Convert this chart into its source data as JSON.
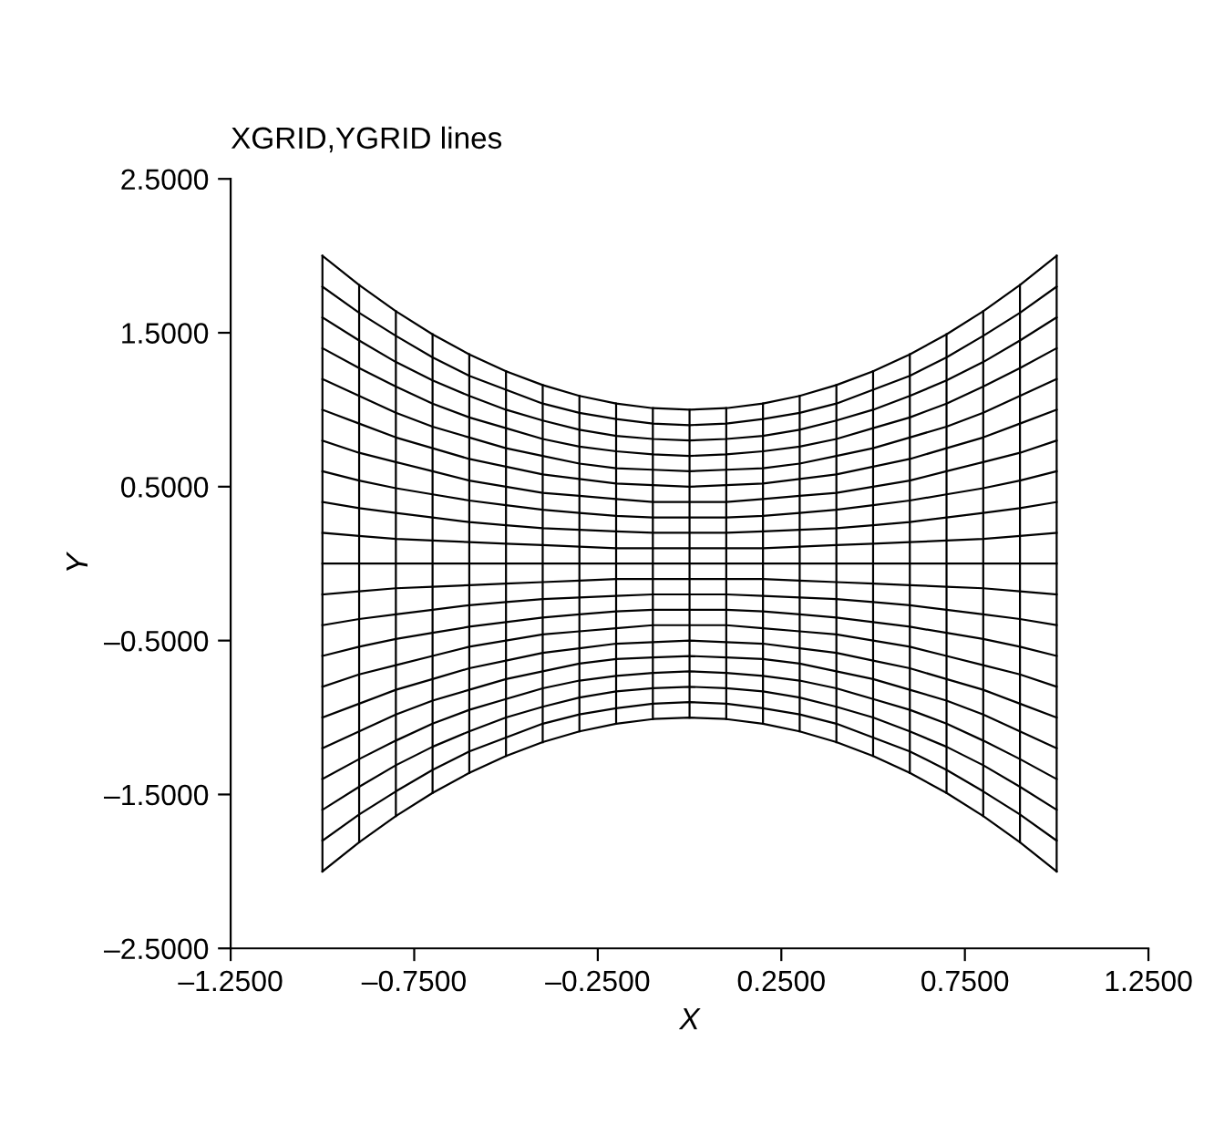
{
  "chart_data": {
    "type": "line",
    "title": "XGRID,YGRID lines",
    "xlabel": "X",
    "ylabel": "Y",
    "xlim": [
      -1.25,
      1.25
    ],
    "ylim": [
      -2.5,
      2.5
    ],
    "xticks": [
      {
        "value": -1.25,
        "label": "–1.2500"
      },
      {
        "value": -0.75,
        "label": "–0.7500"
      },
      {
        "value": -0.25,
        "label": "–0.2500"
      },
      {
        "value": 0.25,
        "label": "0.2500"
      },
      {
        "value": 0.75,
        "label": "0.7500"
      },
      {
        "value": 1.25,
        "label": "1.2500"
      }
    ],
    "yticks": [
      {
        "value": -2.5,
        "label": "–2.5000"
      },
      {
        "value": -1.5,
        "label": "–1.5000"
      },
      {
        "value": -0.5,
        "label": "–0.5000"
      },
      {
        "value": 0.5,
        "label": "0.5000"
      },
      {
        "value": 1.5,
        "label": "1.5000"
      },
      {
        "value": 2.5,
        "label": "2.5000"
      }
    ],
    "grid": false,
    "series": [
      {
        "color": "#000000",
        "x": [
          -1,
          -0.9,
          -0.8,
          -0.7,
          -0.6,
          -0.5,
          -0.4,
          -0.3,
          -0.2,
          -0.1,
          0,
          0.1,
          0.2,
          0.3,
          0.4,
          0.5,
          0.6,
          0.7,
          0.8,
          0.9,
          1
        ],
        "values": [
          2,
          1.81,
          1.64,
          1.49,
          1.36,
          1.25,
          1.16,
          1.09,
          1.04,
          1.01,
          1,
          1.01,
          1.04,
          1.09,
          1.16,
          1.25,
          1.36,
          1.49,
          1.64,
          1.81,
          2
        ]
      },
      {
        "color": "#000000",
        "x": [
          -1,
          -0.9,
          -0.8,
          -0.7,
          -0.6,
          -0.5,
          -0.4,
          -0.3,
          -0.2,
          -0.1,
          0,
          0.1,
          0.2,
          0.3,
          0.4,
          0.5,
          0.6,
          0.7,
          0.8,
          0.9,
          1
        ],
        "values": [
          1.8,
          1.63,
          1.48,
          1.34,
          1.22,
          1.13,
          1.04,
          0.98,
          0.94,
          0.91,
          0.9,
          0.91,
          0.94,
          0.98,
          1.04,
          1.13,
          1.22,
          1.34,
          1.48,
          1.63,
          1.8
        ]
      },
      {
        "color": "#000000",
        "x": [
          -1,
          -0.9,
          -0.8,
          -0.7,
          -0.6,
          -0.5,
          -0.4,
          -0.3,
          -0.2,
          -0.1,
          0,
          0.1,
          0.2,
          0.3,
          0.4,
          0.5,
          0.6,
          0.7,
          0.8,
          0.9,
          1
        ],
        "values": [
          1.6,
          1.45,
          1.31,
          1.19,
          1.09,
          1,
          0.93,
          0.87,
          0.83,
          0.81,
          0.8,
          0.81,
          0.83,
          0.87,
          0.93,
          1,
          1.09,
          1.19,
          1.31,
          1.45,
          1.6
        ]
      },
      {
        "color": "#000000",
        "x": [
          -1,
          -0.9,
          -0.8,
          -0.7,
          -0.6,
          -0.5,
          -0.4,
          -0.3,
          -0.2,
          -0.1,
          0,
          0.1,
          0.2,
          0.3,
          0.4,
          0.5,
          0.6,
          0.7,
          0.8,
          0.9,
          1
        ],
        "values": [
          1.4,
          1.27,
          1.15,
          1.04,
          0.95,
          0.88,
          0.81,
          0.76,
          0.73,
          0.71,
          0.7,
          0.71,
          0.73,
          0.76,
          0.81,
          0.88,
          0.95,
          1.04,
          1.15,
          1.27,
          1.4
        ]
      },
      {
        "color": "#000000",
        "x": [
          -1,
          -0.9,
          -0.8,
          -0.7,
          -0.6,
          -0.5,
          -0.4,
          -0.3,
          -0.2,
          -0.1,
          0,
          0.1,
          0.2,
          0.3,
          0.4,
          0.5,
          0.6,
          0.7,
          0.8,
          0.9,
          1
        ],
        "values": [
          1.2,
          1.09,
          0.98,
          0.89,
          0.82,
          0.75,
          0.7,
          0.65,
          0.62,
          0.61,
          0.6,
          0.61,
          0.62,
          0.65,
          0.7,
          0.75,
          0.82,
          0.89,
          0.98,
          1.09,
          1.2
        ]
      },
      {
        "color": "#000000",
        "x": [
          -1,
          -0.9,
          -0.8,
          -0.7,
          -0.6,
          -0.5,
          -0.4,
          -0.3,
          -0.2,
          -0.1,
          0,
          0.1,
          0.2,
          0.3,
          0.4,
          0.5,
          0.6,
          0.7,
          0.8,
          0.9,
          1
        ],
        "values": [
          1,
          0.91,
          0.82,
          0.75,
          0.68,
          0.63,
          0.58,
          0.55,
          0.52,
          0.51,
          0.5,
          0.51,
          0.52,
          0.55,
          0.58,
          0.63,
          0.68,
          0.75,
          0.82,
          0.91,
          1
        ]
      },
      {
        "color": "#000000",
        "x": [
          -1,
          -0.9,
          -0.8,
          -0.7,
          -0.6,
          -0.5,
          -0.4,
          -0.3,
          -0.2,
          -0.1,
          0,
          0.1,
          0.2,
          0.3,
          0.4,
          0.5,
          0.6,
          0.7,
          0.8,
          0.9,
          1
        ],
        "values": [
          0.8,
          0.72,
          0.66,
          0.6,
          0.54,
          0.5,
          0.46,
          0.44,
          0.42,
          0.4,
          0.4,
          0.4,
          0.42,
          0.44,
          0.46,
          0.5,
          0.54,
          0.6,
          0.66,
          0.72,
          0.8
        ]
      },
      {
        "color": "#000000",
        "x": [
          -1,
          -0.9,
          -0.8,
          -0.7,
          -0.6,
          -0.5,
          -0.4,
          -0.3,
          -0.2,
          -0.1,
          0,
          0.1,
          0.2,
          0.3,
          0.4,
          0.5,
          0.6,
          0.7,
          0.8,
          0.9,
          1
        ],
        "values": [
          0.6,
          0.54,
          0.49,
          0.45,
          0.41,
          0.38,
          0.35,
          0.33,
          0.31,
          0.3,
          0.3,
          0.3,
          0.31,
          0.33,
          0.35,
          0.38,
          0.41,
          0.45,
          0.49,
          0.54,
          0.6
        ]
      },
      {
        "color": "#000000",
        "x": [
          -1,
          -0.9,
          -0.8,
          -0.7,
          -0.6,
          -0.5,
          -0.4,
          -0.3,
          -0.2,
          -0.1,
          0,
          0.1,
          0.2,
          0.3,
          0.4,
          0.5,
          0.6,
          0.7,
          0.8,
          0.9,
          1
        ],
        "values": [
          0.4,
          0.36,
          0.33,
          0.3,
          0.27,
          0.25,
          0.23,
          0.22,
          0.21,
          0.2,
          0.2,
          0.2,
          0.21,
          0.22,
          0.23,
          0.25,
          0.27,
          0.3,
          0.33,
          0.36,
          0.4
        ]
      },
      {
        "color": "#000000",
        "x": [
          -1,
          -0.9,
          -0.8,
          -0.7,
          -0.6,
          -0.5,
          -0.4,
          -0.3,
          -0.2,
          -0.1,
          0,
          0.1,
          0.2,
          0.3,
          0.4,
          0.5,
          0.6,
          0.7,
          0.8,
          0.9,
          1
        ],
        "values": [
          0.2,
          0.18,
          0.16,
          0.15,
          0.14,
          0.13,
          0.12,
          0.11,
          0.1,
          0.1,
          0.1,
          0.1,
          0.1,
          0.11,
          0.12,
          0.13,
          0.14,
          0.15,
          0.16,
          0.18,
          0.2
        ]
      },
      {
        "color": "#000000",
        "x": [
          -1,
          -0.9,
          -0.8,
          -0.7,
          -0.6,
          -0.5,
          -0.4,
          -0.3,
          -0.2,
          -0.1,
          0,
          0.1,
          0.2,
          0.3,
          0.4,
          0.5,
          0.6,
          0.7,
          0.8,
          0.9,
          1
        ],
        "values": [
          0,
          0,
          0,
          0,
          0,
          0,
          0,
          0,
          0,
          0,
          0,
          0,
          0,
          0,
          0,
          0,
          0,
          0,
          0,
          0,
          0
        ]
      },
      {
        "color": "#000000",
        "x": [
          -1,
          -0.9,
          -0.8,
          -0.7,
          -0.6,
          -0.5,
          -0.4,
          -0.3,
          -0.2,
          -0.1,
          0,
          0.1,
          0.2,
          0.3,
          0.4,
          0.5,
          0.6,
          0.7,
          0.8,
          0.9,
          1
        ],
        "values": [
          -0.2,
          -0.18,
          -0.16,
          -0.15,
          -0.14,
          -0.13,
          -0.12,
          -0.11,
          -0.1,
          -0.1,
          -0.1,
          -0.1,
          -0.1,
          -0.11,
          -0.12,
          -0.13,
          -0.14,
          -0.15,
          -0.16,
          -0.18,
          -0.2
        ]
      },
      {
        "color": "#000000",
        "x": [
          -1,
          -0.9,
          -0.8,
          -0.7,
          -0.6,
          -0.5,
          -0.4,
          -0.3,
          -0.2,
          -0.1,
          0,
          0.1,
          0.2,
          0.3,
          0.4,
          0.5,
          0.6,
          0.7,
          0.8,
          0.9,
          1
        ],
        "values": [
          -0.4,
          -0.36,
          -0.33,
          -0.3,
          -0.27,
          -0.25,
          -0.23,
          -0.22,
          -0.21,
          -0.2,
          -0.2,
          -0.2,
          -0.21,
          -0.22,
          -0.23,
          -0.25,
          -0.27,
          -0.3,
          -0.33,
          -0.36,
          -0.4
        ]
      },
      {
        "color": "#000000",
        "x": [
          -1,
          -0.9,
          -0.8,
          -0.7,
          -0.6,
          -0.5,
          -0.4,
          -0.3,
          -0.2,
          -0.1,
          0,
          0.1,
          0.2,
          0.3,
          0.4,
          0.5,
          0.6,
          0.7,
          0.8,
          0.9,
          1
        ],
        "values": [
          -0.6,
          -0.54,
          -0.49,
          -0.45,
          -0.41,
          -0.38,
          -0.35,
          -0.33,
          -0.31,
          -0.3,
          -0.3,
          -0.3,
          -0.31,
          -0.33,
          -0.35,
          -0.38,
          -0.41,
          -0.45,
          -0.49,
          -0.54,
          -0.6
        ]
      },
      {
        "color": "#000000",
        "x": [
          -1,
          -0.9,
          -0.8,
          -0.7,
          -0.6,
          -0.5,
          -0.4,
          -0.3,
          -0.2,
          -0.1,
          0,
          0.1,
          0.2,
          0.3,
          0.4,
          0.5,
          0.6,
          0.7,
          0.8,
          0.9,
          1
        ],
        "values": [
          -0.8,
          -0.72,
          -0.66,
          -0.6,
          -0.54,
          -0.5,
          -0.46,
          -0.44,
          -0.42,
          -0.4,
          -0.4,
          -0.4,
          -0.42,
          -0.44,
          -0.46,
          -0.5,
          -0.54,
          -0.6,
          -0.66,
          -0.72,
          -0.8
        ]
      },
      {
        "color": "#000000",
        "x": [
          -1,
          -0.9,
          -0.8,
          -0.7,
          -0.6,
          -0.5,
          -0.4,
          -0.3,
          -0.2,
          -0.1,
          0,
          0.1,
          0.2,
          0.3,
          0.4,
          0.5,
          0.6,
          0.7,
          0.8,
          0.9,
          1
        ],
        "values": [
          -1,
          -0.91,
          -0.82,
          -0.75,
          -0.68,
          -0.63,
          -0.58,
          -0.55,
          -0.52,
          -0.51,
          -0.5,
          -0.51,
          -0.52,
          -0.55,
          -0.58,
          -0.63,
          -0.68,
          -0.75,
          -0.82,
          -0.91,
          -1
        ]
      },
      {
        "color": "#000000",
        "x": [
          -1,
          -0.9,
          -0.8,
          -0.7,
          -0.6,
          -0.5,
          -0.4,
          -0.3,
          -0.2,
          -0.1,
          0,
          0.1,
          0.2,
          0.3,
          0.4,
          0.5,
          0.6,
          0.7,
          0.8,
          0.9,
          1
        ],
        "values": [
          -1.2,
          -1.09,
          -0.98,
          -0.89,
          -0.82,
          -0.75,
          -0.7,
          -0.65,
          -0.62,
          -0.61,
          -0.6,
          -0.61,
          -0.62,
          -0.65,
          -0.7,
          -0.75,
          -0.82,
          -0.89,
          -0.98,
          -1.09,
          -1.2
        ]
      },
      {
        "color": "#000000",
        "x": [
          -1,
          -0.9,
          -0.8,
          -0.7,
          -0.6,
          -0.5,
          -0.4,
          -0.3,
          -0.2,
          -0.1,
          0,
          0.1,
          0.2,
          0.3,
          0.4,
          0.5,
          0.6,
          0.7,
          0.8,
          0.9,
          1
        ],
        "values": [
          -1.4,
          -1.27,
          -1.15,
          -1.04,
          -0.95,
          -0.88,
          -0.81,
          -0.76,
          -0.73,
          -0.71,
          -0.7,
          -0.71,
          -0.73,
          -0.76,
          -0.81,
          -0.88,
          -0.95,
          -1.04,
          -1.15,
          -1.27,
          -1.4
        ]
      },
      {
        "color": "#000000",
        "x": [
          -1,
          -0.9,
          -0.8,
          -0.7,
          -0.6,
          -0.5,
          -0.4,
          -0.3,
          -0.2,
          -0.1,
          0,
          0.1,
          0.2,
          0.3,
          0.4,
          0.5,
          0.6,
          0.7,
          0.8,
          0.9,
          1
        ],
        "values": [
          -1.6,
          -1.45,
          -1.31,
          -1.19,
          -1.09,
          -1,
          -0.93,
          -0.87,
          -0.83,
          -0.81,
          -0.8,
          -0.81,
          -0.83,
          -0.87,
          -0.93,
          -1,
          -1.09,
          -1.19,
          -1.31,
          -1.45,
          -1.6
        ]
      },
      {
        "color": "#000000",
        "x": [
          -1,
          -0.9,
          -0.8,
          -0.7,
          -0.6,
          -0.5,
          -0.4,
          -0.3,
          -0.2,
          -0.1,
          0,
          0.1,
          0.2,
          0.3,
          0.4,
          0.5,
          0.6,
          0.7,
          0.8,
          0.9,
          1
        ],
        "values": [
          -1.8,
          -1.63,
          -1.48,
          -1.34,
          -1.22,
          -1.13,
          -1.04,
          -0.98,
          -0.94,
          -0.91,
          -0.9,
          -0.91,
          -0.94,
          -0.98,
          -1.04,
          -1.13,
          -1.22,
          -1.34,
          -1.48,
          -1.63,
          -1.8
        ]
      },
      {
        "color": "#000000",
        "x": [
          -1,
          -0.9,
          -0.8,
          -0.7,
          -0.6,
          -0.5,
          -0.4,
          -0.3,
          -0.2,
          -0.1,
          0,
          0.1,
          0.2,
          0.3,
          0.4,
          0.5,
          0.6,
          0.7,
          0.8,
          0.9,
          1
        ],
        "values": [
          -2,
          -1.81,
          -1.64,
          -1.49,
          -1.36,
          -1.25,
          -1.16,
          -1.09,
          -1.04,
          -1.01,
          -1,
          -1.01,
          -1.04,
          -1.09,
          -1.16,
          -1.25,
          -1.36,
          -1.49,
          -1.64,
          -1.81,
          -2
        ]
      },
      {
        "color": "#000000",
        "x": [
          -1,
          -1
        ],
        "values": [
          -2,
          2
        ]
      },
      {
        "color": "#000000",
        "x": [
          -0.9,
          -0.9
        ],
        "values": [
          -1.81,
          1.81
        ]
      },
      {
        "color": "#000000",
        "x": [
          -0.8,
          -0.8
        ],
        "values": [
          -1.64,
          1.64
        ]
      },
      {
        "color": "#000000",
        "x": [
          -0.7,
          -0.7
        ],
        "values": [
          -1.49,
          1.49
        ]
      },
      {
        "color": "#000000",
        "x": [
          -0.6,
          -0.6
        ],
        "values": [
          -1.36,
          1.36
        ]
      },
      {
        "color": "#000000",
        "x": [
          -0.5,
          -0.5
        ],
        "values": [
          -1.25,
          1.25
        ]
      },
      {
        "color": "#000000",
        "x": [
          -0.4,
          -0.4
        ],
        "values": [
          -1.16,
          1.16
        ]
      },
      {
        "color": "#000000",
        "x": [
          -0.3,
          -0.3
        ],
        "values": [
          -1.09,
          1.09
        ]
      },
      {
        "color": "#000000",
        "x": [
          -0.2,
          -0.2
        ],
        "values": [
          -1.04,
          1.04
        ]
      },
      {
        "color": "#000000",
        "x": [
          -0.1,
          -0.1
        ],
        "values": [
          -1.01,
          1.01
        ]
      },
      {
        "color": "#000000",
        "x": [
          0,
          0
        ],
        "values": [
          -1,
          1
        ]
      },
      {
        "color": "#000000",
        "x": [
          0.1,
          0.1
        ],
        "values": [
          -1.01,
          1.01
        ]
      },
      {
        "color": "#000000",
        "x": [
          0.2,
          0.2
        ],
        "values": [
          -1.04,
          1.04
        ]
      },
      {
        "color": "#000000",
        "x": [
          0.3,
          0.3
        ],
        "values": [
          -1.09,
          1.09
        ]
      },
      {
        "color": "#000000",
        "x": [
          0.4,
          0.4
        ],
        "values": [
          -1.16,
          1.16
        ]
      },
      {
        "color": "#000000",
        "x": [
          0.5,
          0.5
        ],
        "values": [
          -1.25,
          1.25
        ]
      },
      {
        "color": "#000000",
        "x": [
          0.6,
          0.6
        ],
        "values": [
          -1.36,
          1.36
        ]
      },
      {
        "color": "#000000",
        "x": [
          0.7,
          0.7
        ],
        "values": [
          -1.49,
          1.49
        ]
      },
      {
        "color": "#000000",
        "x": [
          0.8,
          0.8
        ],
        "values": [
          -1.64,
          1.64
        ]
      },
      {
        "color": "#000000",
        "x": [
          0.9,
          0.9
        ],
        "values": [
          -1.81,
          1.81
        ]
      },
      {
        "color": "#000000",
        "x": [
          1,
          1
        ],
        "values": [
          -2,
          2
        ]
      }
    ]
  }
}
